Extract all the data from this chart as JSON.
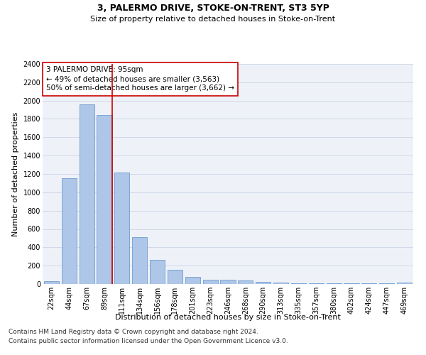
{
  "title": "3, PALERMO DRIVE, STOKE-ON-TRENT, ST3 5YP",
  "subtitle": "Size of property relative to detached houses in Stoke-on-Trent",
  "xlabel": "Distribution of detached houses by size in Stoke-on-Trent",
  "ylabel": "Number of detached properties",
  "categories": [
    "22sqm",
    "44sqm",
    "67sqm",
    "89sqm",
    "111sqm",
    "134sqm",
    "156sqm",
    "178sqm",
    "201sqm",
    "223sqm",
    "246sqm",
    "268sqm",
    "290sqm",
    "313sqm",
    "335sqm",
    "357sqm",
    "380sqm",
    "402sqm",
    "424sqm",
    "447sqm",
    "469sqm"
  ],
  "values": [
    30,
    1150,
    1960,
    1840,
    1215,
    510,
    265,
    155,
    80,
    50,
    45,
    40,
    20,
    18,
    10,
    10,
    10,
    10,
    5,
    5,
    18
  ],
  "bar_color": "#aec6e8",
  "bar_edge_color": "#5b8fc9",
  "grid_color": "#d0d8e8",
  "background_color": "#eef2f8",
  "vline_color": "#cc0000",
  "vline_x_index": 3.43,
  "annotation_title": "3 PALERMO DRIVE: 95sqm",
  "annotation_line1": "← 49% of detached houses are smaller (3,563)",
  "annotation_line2": "50% of semi-detached houses are larger (3,662) →",
  "annotation_box_color": "#ffffff",
  "annotation_border_color": "#cc0000",
  "ylim": [
    0,
    2400
  ],
  "yticks": [
    0,
    200,
    400,
    600,
    800,
    1000,
    1200,
    1400,
    1600,
    1800,
    2000,
    2200,
    2400
  ],
  "footnote1": "Contains HM Land Registry data © Crown copyright and database right 2024.",
  "footnote2": "Contains public sector information licensed under the Open Government Licence v3.0.",
  "title_fontsize": 9,
  "subtitle_fontsize": 8,
  "xlabel_fontsize": 8,
  "ylabel_fontsize": 8,
  "tick_fontsize": 7,
  "annotation_fontsize": 7.5,
  "footnote_fontsize": 6.5
}
